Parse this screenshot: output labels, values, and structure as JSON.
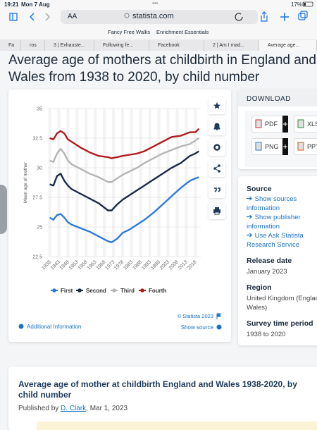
{
  "status_bar": {
    "time": "19:21",
    "date": "Mon 7 Aug",
    "dots": "•••",
    "battery": "17%"
  },
  "browser": {
    "text_size": "AA",
    "url": "statista.com",
    "bookmarks": [
      "Fancy Free Walks",
      "Enrichment Essentials"
    ],
    "tabs": [
      "Fa",
      "ros",
      "3 | Exhauste...",
      "Following fe...",
      "Facebook",
      "2 | Am I mad...",
      "Average age..."
    ]
  },
  "page": {
    "title": "Average age of mothers at childbirth in England and Wales from 1938 to 2020, by child number"
  },
  "chart_data": {
    "type": "line",
    "y_label": "Mean age of mother",
    "x": [
      1938,
      1940,
      1942,
      1944,
      1946,
      1948,
      1950,
      1955,
      1960,
      1965,
      1970,
      1972,
      1975,
      1978,
      1982,
      1986,
      1990,
      1995,
      2000,
      2005,
      2010,
      2015,
      2018,
      2020
    ],
    "series": [
      {
        "name": "First",
        "color": "#2e7bd6",
        "values": [
          25.8,
          25.6,
          26.0,
          26.1,
          25.8,
          25.4,
          25.2,
          24.9,
          24.6,
          24.2,
          23.8,
          23.7,
          24.0,
          24.5,
          24.8,
          25.2,
          25.6,
          26.2,
          26.9,
          27.6,
          28.3,
          28.9,
          29.1,
          29.2
        ]
      },
      {
        "name": "Second",
        "color": "#1b2a47",
        "values": [
          28.6,
          28.5,
          29.3,
          29.5,
          28.9,
          28.5,
          28.2,
          27.8,
          27.4,
          27.0,
          26.4,
          26.4,
          26.9,
          27.3,
          27.7,
          28.1,
          28.5,
          29.0,
          29.5,
          30.0,
          30.4,
          31.0,
          31.2,
          31.4
        ]
      },
      {
        "name": "Third",
        "color": "#b5b5b5",
        "values": [
          30.6,
          30.5,
          31.2,
          31.6,
          31.2,
          30.6,
          30.3,
          29.9,
          29.5,
          29.2,
          28.8,
          28.8,
          29.1,
          29.4,
          29.7,
          30.0,
          30.4,
          30.8,
          31.2,
          31.5,
          31.8,
          32.0,
          32.3,
          32.5
        ]
      },
      {
        "name": "Fourth",
        "color": "#b01c1c",
        "values": [
          32.5,
          32.4,
          32.9,
          33.1,
          32.9,
          32.4,
          32.2,
          31.7,
          31.3,
          31.0,
          30.9,
          30.8,
          30.9,
          31.0,
          31.1,
          31.2,
          31.4,
          31.8,
          32.2,
          32.6,
          32.7,
          33.0,
          33.0,
          33.3
        ]
      }
    ],
    "xlim": [
      1937,
      2021
    ],
    "xticks": [
      1938,
      1943,
      1948,
      1953,
      1958,
      1963,
      1968,
      1973,
      1978,
      1983,
      1988,
      1993,
      1998,
      2003,
      2008,
      2013,
      2018
    ],
    "ylim": [
      22.5,
      35
    ],
    "yticks": [
      22.5,
      25,
      27.5,
      30,
      32.5,
      35
    ],
    "grid": true,
    "credit": "© Statista 2023",
    "links": [
      "Additional Information",
      "Show source"
    ]
  },
  "download": {
    "heading": "DOWNLOAD",
    "formats": [
      "PDF",
      "XLS",
      "PNG",
      "PPT"
    ]
  },
  "details": {
    "source_heading": "Source",
    "source_links": [
      "Show sources information",
      "Show publisher information",
      "Use Ask Statista Research Service"
    ],
    "release_heading": "Release date",
    "release": "January 2023",
    "region_heading": "Region",
    "region": [
      "United Kingdom (England &",
      "Wales)"
    ],
    "period_heading": "Survey time period",
    "period": "1938 to 2020"
  },
  "article": {
    "title": "Average age of mother at childbirth England and Wales 1938-2020, by child number",
    "published_by": "Published by",
    "author": "D. Clark",
    "date": ", Mar 1, 2023"
  }
}
